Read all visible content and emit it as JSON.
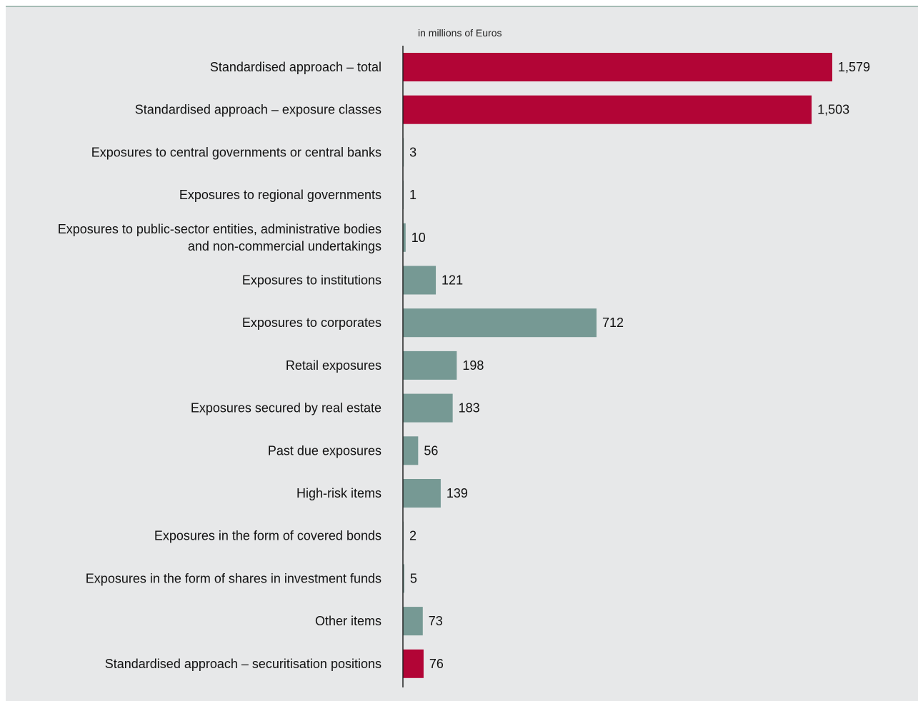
{
  "chart_data": {
    "type": "bar",
    "orientation": "horizontal",
    "unit_label": "in millions of Euros",
    "title": "",
    "xlabel": "",
    "ylabel": "",
    "xlim": [
      0,
      1579
    ],
    "grid": false,
    "categories": [
      "Standardised approach – total",
      "Standardised approach – exposure classes",
      "Exposures to central governments or central banks",
      "Exposures to regional governments",
      [
        "Exposures to public-sector entities, administrative bodies",
        "and non-commercial undertakings"
      ],
      "Exposures to institutions",
      "Exposures to corporates",
      "Retail exposures",
      "Exposures secured by real estate",
      "Past due exposures",
      "High-risk items",
      "Exposures in the form of covered bonds",
      "Exposures in the form of shares in investment funds",
      "Other items",
      "Standardised approach – securitisation positions"
    ],
    "values": [
      1579,
      1503,
      3,
      1,
      10,
      121,
      712,
      198,
      183,
      56,
      139,
      2,
      5,
      73,
      76
    ],
    "value_labels": [
      "1,579",
      "1,503",
      "3",
      "1",
      "10",
      "121",
      "712",
      "198",
      "183",
      "56",
      "139",
      "2",
      "5",
      "73",
      "76"
    ],
    "bar_groups": [
      "total",
      "total",
      "class",
      "class",
      "class",
      "class",
      "class",
      "class",
      "class",
      "class",
      "class",
      "class",
      "class",
      "class",
      "total"
    ],
    "colors": {
      "total": "#b20536",
      "class": "#769994",
      "axis": "#222222"
    }
  }
}
